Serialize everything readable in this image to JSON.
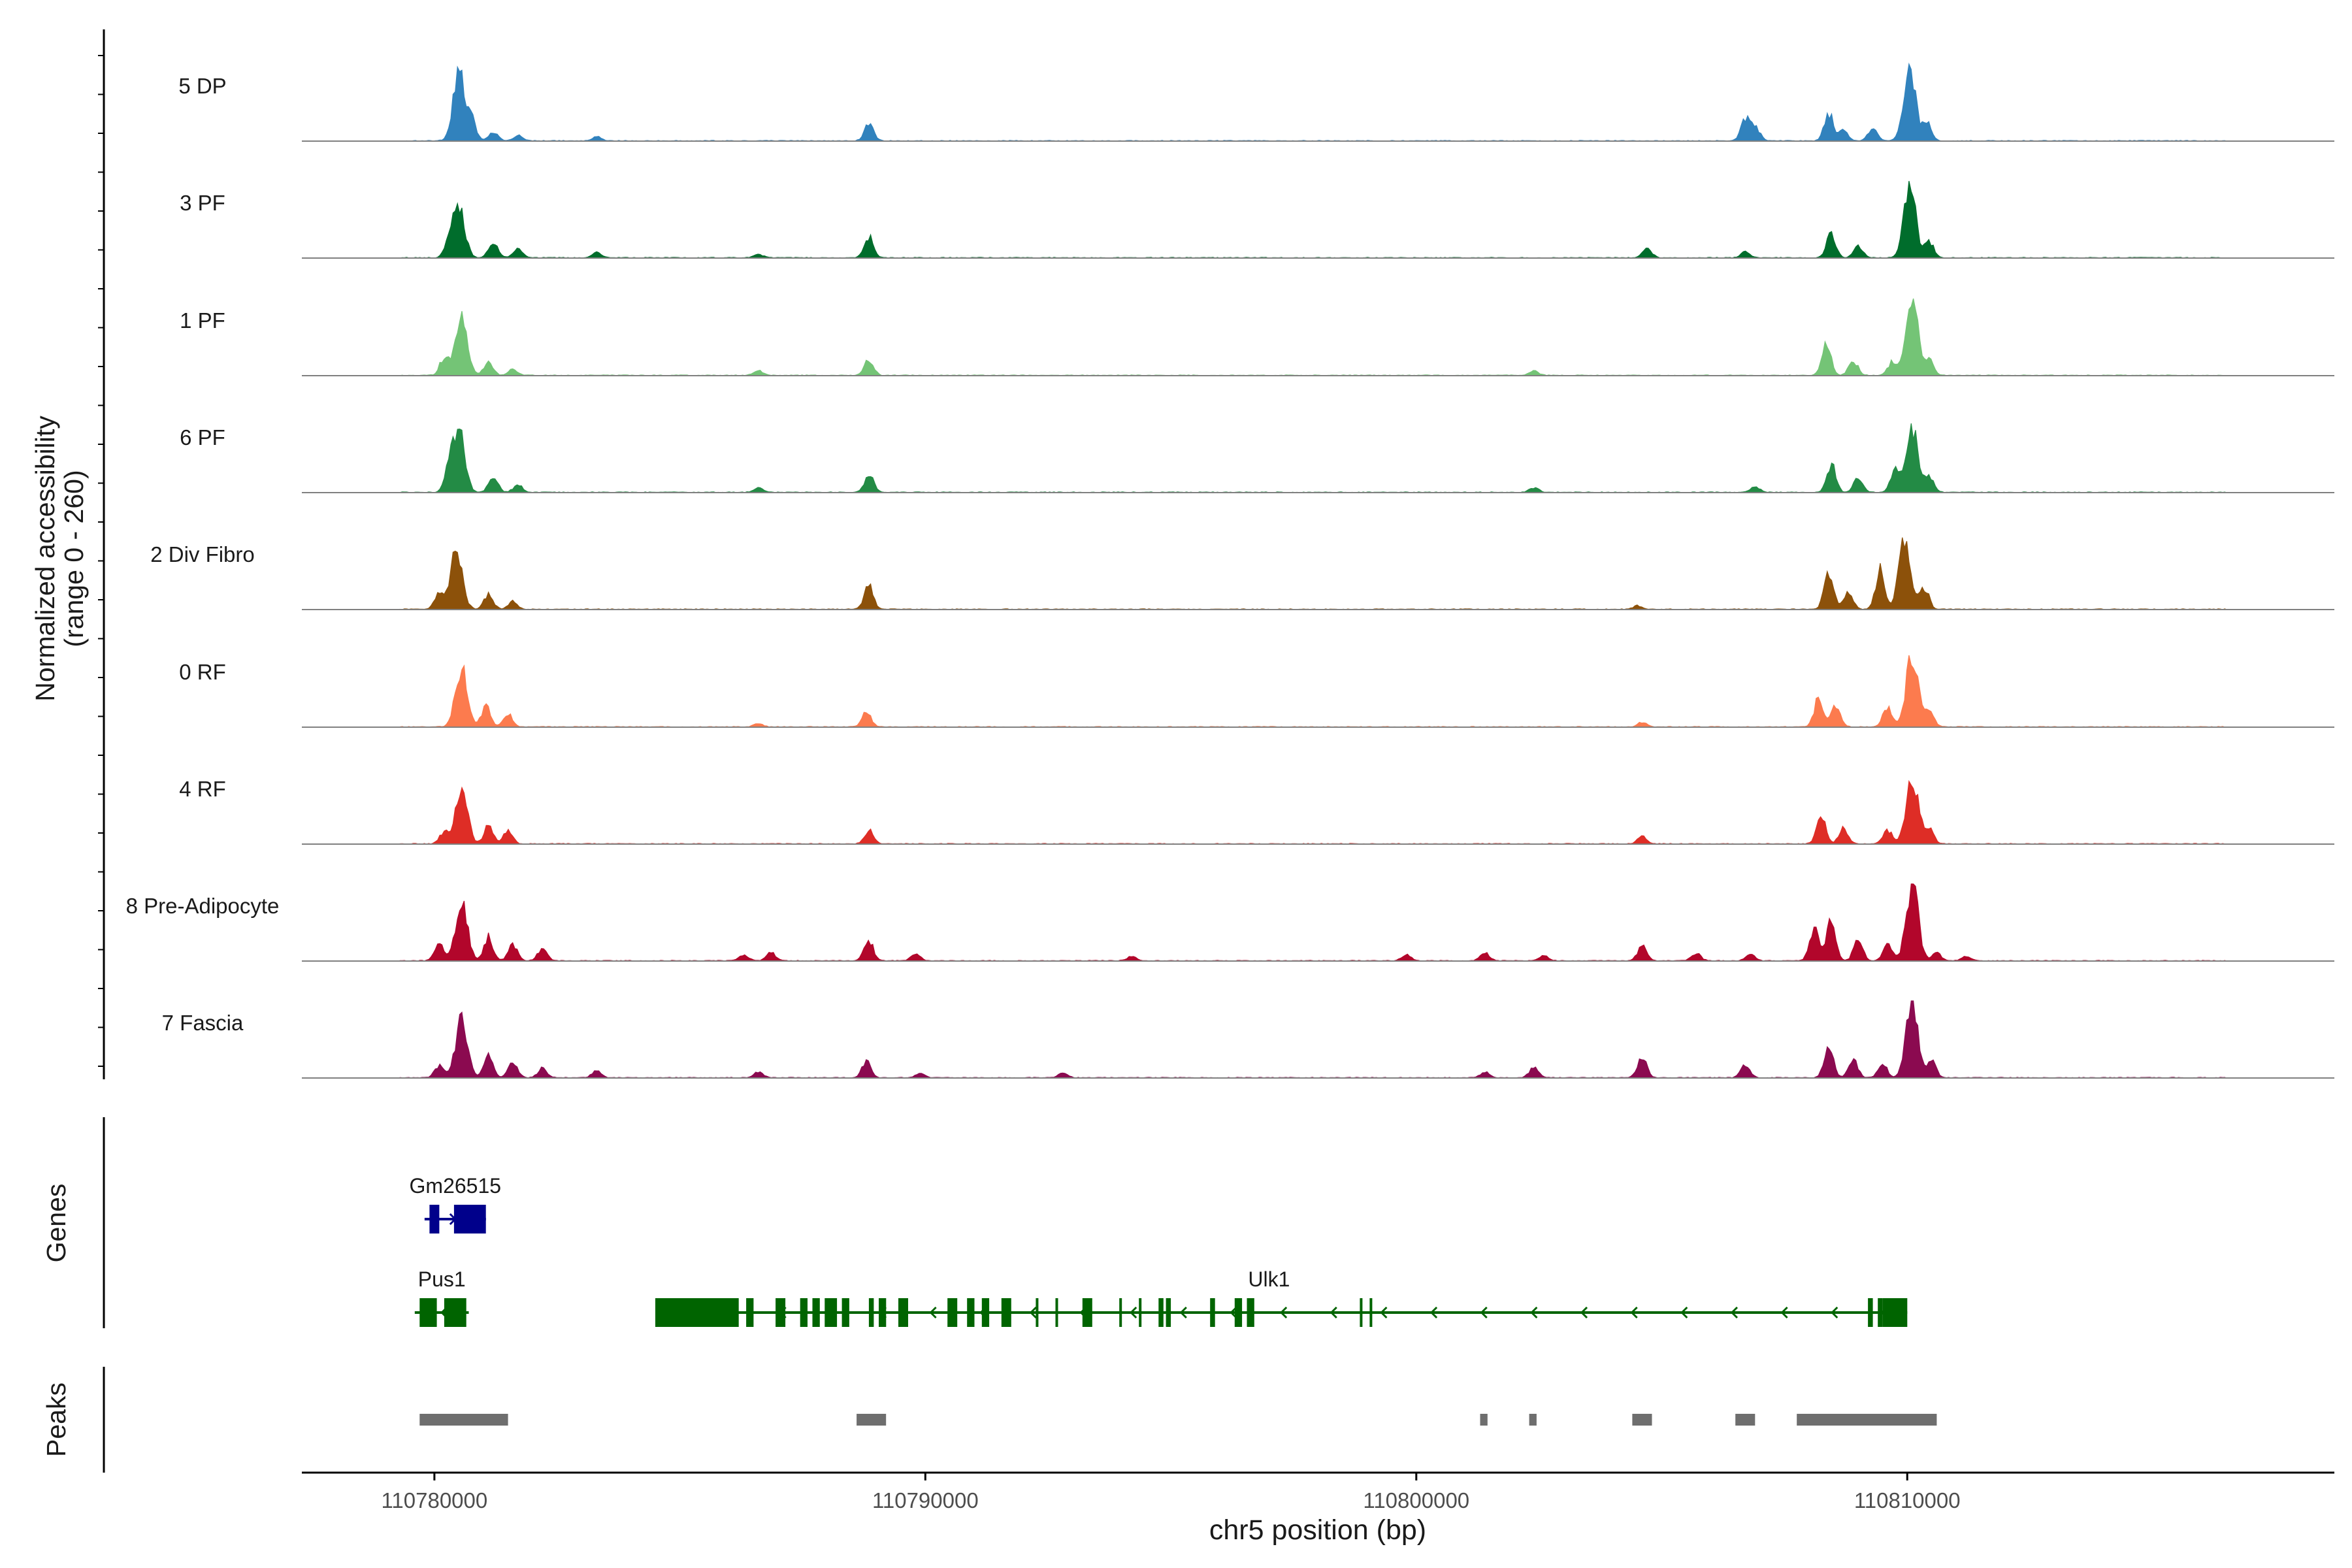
{
  "chart_data": {
    "type": "area",
    "title": "",
    "xlabel": "chr5 position (bp)",
    "ylabel_line1": "Normalized accessibility",
    "ylabel_line2": "(range 0 - 260)",
    "yrange": [
      0,
      260
    ],
    "xlim": [
      110777300,
      110818700
    ],
    "x_ticks": [
      110780000,
      110790000,
      110800000,
      110810000
    ],
    "x_tick_labels": [
      "110780000",
      "110790000",
      "110800000",
      "110810000"
    ],
    "tracks": [
      {
        "name": "5 DP",
        "color": "#3182bd",
        "peaks": [
          [
            110780500,
            220
          ],
          [
            110780750,
            70
          ],
          [
            110781200,
            30
          ],
          [
            110781700,
            18
          ],
          [
            110783300,
            14
          ],
          [
            110788850,
            55
          ],
          [
            110806700,
            70
          ],
          [
            110806900,
            48
          ],
          [
            110808400,
            95
          ],
          [
            110808700,
            40
          ],
          [
            110809300,
            45
          ],
          [
            110810050,
            230
          ],
          [
            110810400,
            60
          ]
        ]
      },
      {
        "name": "3 PF",
        "color": "#006d2c",
        "peaks": [
          [
            110780500,
            160
          ],
          [
            110780300,
            50
          ],
          [
            110781200,
            55
          ],
          [
            110781700,
            30
          ],
          [
            110783300,
            18
          ],
          [
            110786600,
            12
          ],
          [
            110788850,
            70
          ],
          [
            110804700,
            35
          ],
          [
            110806700,
            20
          ],
          [
            110808450,
            80
          ],
          [
            110809000,
            40
          ],
          [
            110810050,
            240
          ],
          [
            110810450,
            55
          ]
        ]
      },
      {
        "name": "1 PF",
        "color": "#74c476",
        "peaks": [
          [
            110780550,
            200
          ],
          [
            110780200,
            60
          ],
          [
            110781100,
            45
          ],
          [
            110781600,
            20
          ],
          [
            110786600,
            15
          ],
          [
            110788850,
            55
          ],
          [
            110802400,
            15
          ],
          [
            110808350,
            110
          ],
          [
            110808900,
            50
          ],
          [
            110809700,
            45
          ],
          [
            110810100,
            260
          ],
          [
            110810450,
            50
          ]
        ]
      },
      {
        "name": "6 PF",
        "color": "#238b45",
        "peaks": [
          [
            110780500,
            200
          ],
          [
            110780300,
            70
          ],
          [
            110781200,
            55
          ],
          [
            110781700,
            25
          ],
          [
            110786600,
            15
          ],
          [
            110788850,
            60
          ],
          [
            110802400,
            15
          ],
          [
            110806900,
            20
          ],
          [
            110808450,
            95
          ],
          [
            110809000,
            50
          ],
          [
            110809750,
            75
          ],
          [
            110810100,
            210
          ],
          [
            110810450,
            55
          ]
        ]
      },
      {
        "name": "2 Div Fibro",
        "color": "#8c510a",
        "peaks": [
          [
            110780450,
            200
          ],
          [
            110780100,
            50
          ],
          [
            110781100,
            50
          ],
          [
            110781600,
            25
          ],
          [
            110788850,
            85
          ],
          [
            110804500,
            12
          ],
          [
            110808400,
            130
          ],
          [
            110808800,
            60
          ],
          [
            110809450,
            130
          ],
          [
            110809950,
            250
          ],
          [
            110810350,
            70
          ]
        ]
      },
      {
        "name": "0 RF",
        "color": "#fc7b4e",
        "peaks": [
          [
            110780550,
            190
          ],
          [
            110781050,
            70
          ],
          [
            110781500,
            45
          ],
          [
            110786600,
            12
          ],
          [
            110788800,
            50
          ],
          [
            110804600,
            15
          ],
          [
            110808200,
            100
          ],
          [
            110808550,
            70
          ],
          [
            110809600,
            70
          ],
          [
            110810100,
            245
          ],
          [
            110810450,
            50
          ]
        ]
      },
      {
        "name": "4 RF",
        "color": "#de2d26",
        "peaks": [
          [
            110780550,
            190
          ],
          [
            110780200,
            40
          ],
          [
            110781100,
            60
          ],
          [
            110781500,
            45
          ],
          [
            110788850,
            45
          ],
          [
            110804600,
            25
          ],
          [
            110808250,
            90
          ],
          [
            110808700,
            50
          ],
          [
            110809600,
            45
          ],
          [
            110810100,
            230
          ],
          [
            110810450,
            55
          ]
        ]
      },
      {
        "name": "8 Pre-Adipocyte",
        "color": "#b2062b",
        "peaks": [
          [
            110780550,
            200
          ],
          [
            110780100,
            60
          ],
          [
            110781100,
            80
          ],
          [
            110781600,
            55
          ],
          [
            110782200,
            40
          ],
          [
            110786300,
            20
          ],
          [
            110786850,
            28
          ],
          [
            110788850,
            70
          ],
          [
            110789800,
            25
          ],
          [
            110794200,
            15
          ],
          [
            110799800,
            20
          ],
          [
            110801400,
            25
          ],
          [
            110802600,
            18
          ],
          [
            110804600,
            50
          ],
          [
            110805700,
            25
          ],
          [
            110806800,
            20
          ],
          [
            110808100,
            110
          ],
          [
            110808450,
            150
          ],
          [
            110809000,
            70
          ],
          [
            110809600,
            60
          ],
          [
            110810100,
            260
          ],
          [
            110810600,
            25
          ],
          [
            110811200,
            15
          ]
        ]
      },
      {
        "name": "7 Fascia",
        "color": "#8b0a50",
        "peaks": [
          [
            110780550,
            190
          ],
          [
            110780100,
            40
          ],
          [
            110781100,
            70
          ],
          [
            110781600,
            50
          ],
          [
            110782200,
            30
          ],
          [
            110783300,
            25
          ],
          [
            110786600,
            20
          ],
          [
            110788800,
            55
          ],
          [
            110789900,
            15
          ],
          [
            110792800,
            15
          ],
          [
            110801400,
            20
          ],
          [
            110802400,
            35
          ],
          [
            110804600,
            70
          ],
          [
            110806700,
            40
          ],
          [
            110808400,
            110
          ],
          [
            110808900,
            60
          ],
          [
            110809500,
            45
          ],
          [
            110810100,
            260
          ],
          [
            110810500,
            55
          ]
        ]
      }
    ],
    "genes_label": "Genes",
    "peaks_label": "Peaks",
    "genes": [
      {
        "name": "Gm26515",
        "color": "#00008b",
        "row": 0,
        "start": 110779800,
        "end": 110781050,
        "strand": "+",
        "exons": [
          [
            110779900,
            110780100
          ],
          [
            110780400,
            110781050
          ]
        ]
      },
      {
        "name": "Pus1",
        "color": "#006400",
        "row": 1,
        "start": 110779600,
        "end": 110780700,
        "strand": "-",
        "exons": [
          [
            110779700,
            110780050
          ],
          [
            110780200,
            110780650
          ]
        ]
      },
      {
        "name": "Ulk1",
        "color": "#006400",
        "row": 1,
        "start": 110784500,
        "end": 110810000,
        "strand": "-",
        "exons": [
          [
            110784500,
            110786200
          ],
          [
            110786350,
            110786500
          ],
          [
            110786950,
            110787150
          ],
          [
            110787450,
            110787600
          ],
          [
            110787700,
            110787850
          ],
          [
            110787950,
            110788200
          ],
          [
            110788300,
            110788450
          ],
          [
            110788850,
            110788950
          ],
          [
            110789050,
            110789200
          ],
          [
            110789450,
            110789650
          ],
          [
            110790450,
            110790650
          ],
          [
            110790850,
            110791000
          ],
          [
            110791150,
            110791300
          ],
          [
            110791550,
            110791750
          ],
          [
            110792250,
            110792300
          ],
          [
            110792650,
            110792700
          ],
          [
            110793200,
            110793400
          ],
          [
            110793950,
            110794000
          ],
          [
            110794350,
            110794400
          ],
          [
            110794750,
            110794850
          ],
          [
            110794900,
            110795000
          ],
          [
            110795800,
            110795900
          ],
          [
            110796300,
            110796450
          ],
          [
            110796550,
            110796700
          ],
          [
            110798850,
            110798900
          ],
          [
            110799050,
            110799100
          ],
          [
            110809200,
            110809300
          ],
          [
            110809400,
            110809500
          ],
          [
            110809500,
            110810000
          ]
        ]
      }
    ],
    "peak_regions": [
      [
        110779700,
        110781500
      ],
      [
        110788600,
        110789200
      ],
      [
        110801300,
        110801450
      ],
      [
        110802300,
        110802450
      ],
      [
        110804400,
        110804800
      ],
      [
        110806500,
        110806900
      ],
      [
        110807750,
        110810600
      ]
    ]
  }
}
